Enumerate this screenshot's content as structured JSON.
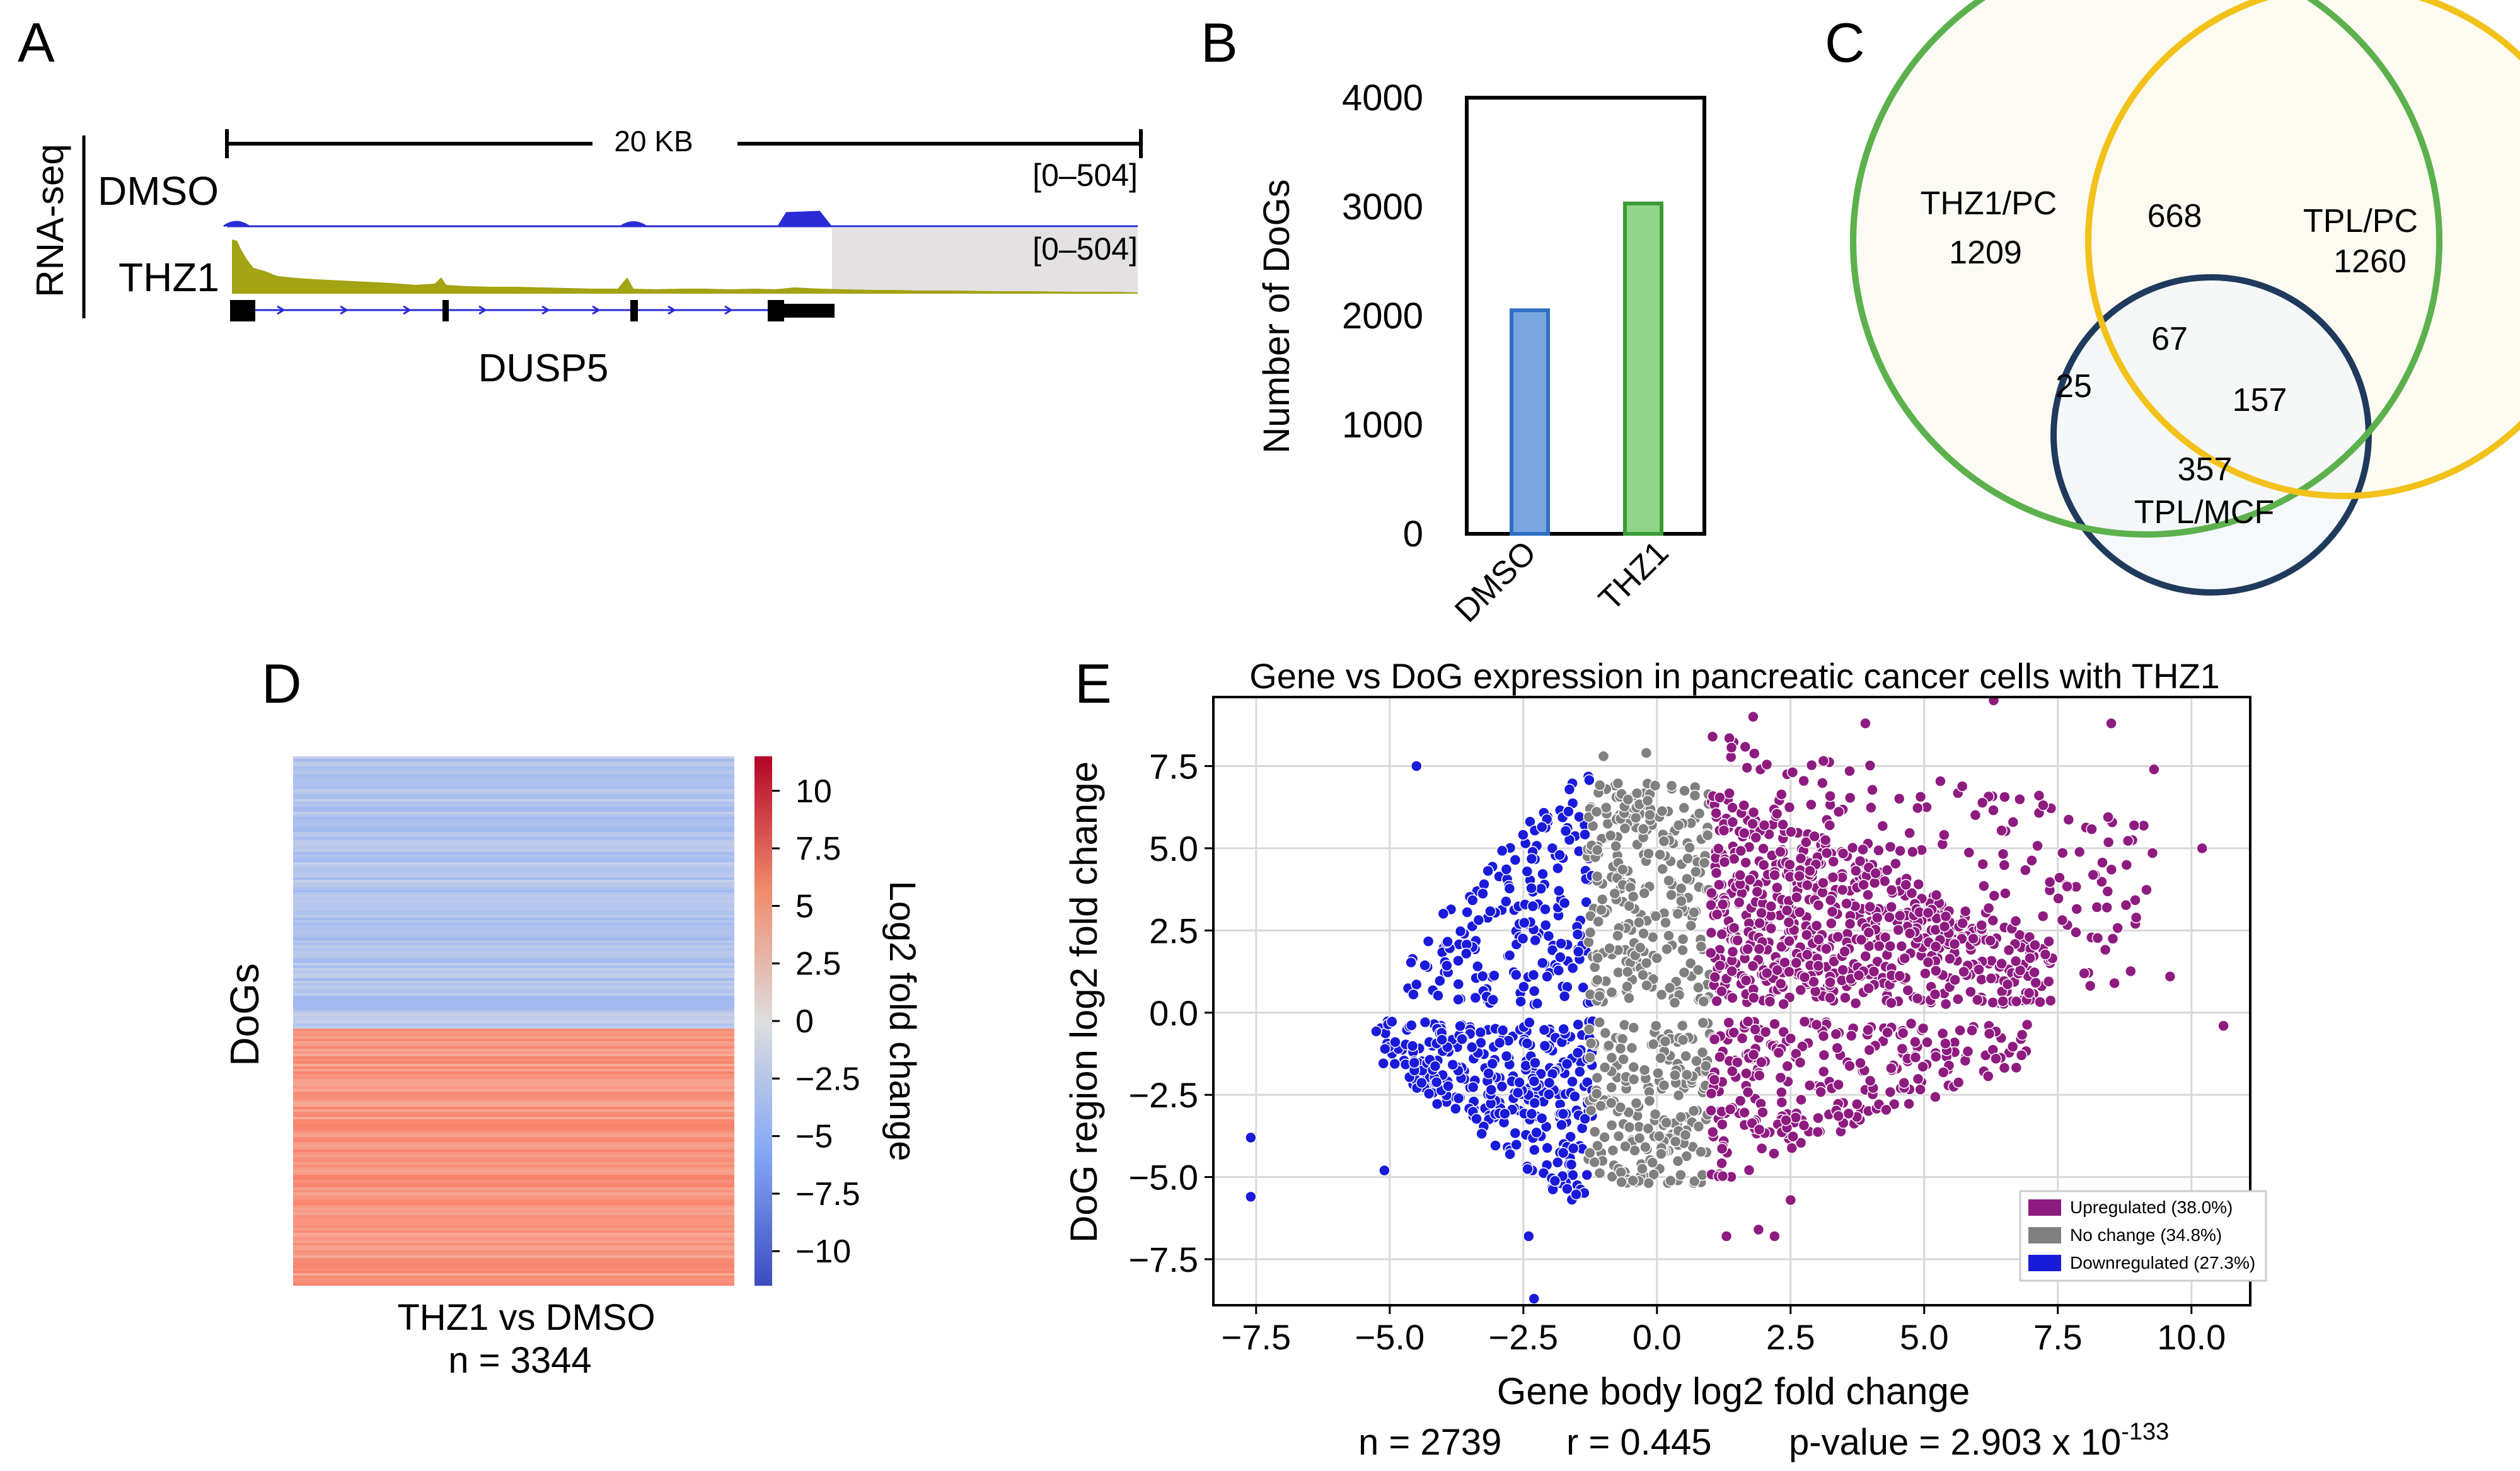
{
  "panel_letters": {
    "a": "A",
    "b": "B",
    "c": "C",
    "d": "D",
    "e": "E"
  },
  "colors": {
    "dmso_track": "#2b2bd6",
    "thz1_track": "#a3a313",
    "shade": "#e3e1e1",
    "bar_dmso": "#7aa6e0",
    "bar_dmso_edge": "#2e6fc2",
    "bar_thz1": "#8fd68a",
    "bar_thz1_edge": "#3a9c36",
    "venn_green": "#5cb14d",
    "venn_yellow": "#f2c21b",
    "venn_navy": "#1f3a5c",
    "up": "#8e1b80",
    "nc": "#808080",
    "down": "#1a1adb"
  },
  "panel_a": {
    "side_label": "RNA-seq",
    "scale_label": "20 KB",
    "tracks": [
      {
        "name": "DMSO",
        "range": "[0–504]"
      },
      {
        "name": "THZ1",
        "range": "[0–504]"
      }
    ],
    "gene": "DUSP5"
  },
  "chart_data": [
    {
      "type": "bar",
      "panel": "B",
      "categories": [
        "DMSO",
        "THZ1"
      ],
      "values": [
        2050,
        3030
      ],
      "ylabel": "Number of DoGs",
      "ylim": [
        0,
        4000
      ],
      "yticks": [
        0,
        1000,
        2000,
        3000,
        4000
      ]
    },
    {
      "type": "venn",
      "panel": "C",
      "sets": [
        "THZ1/PC",
        "TPL/PC",
        "TPL/MCF"
      ],
      "regions": {
        "thz1_only": "1209",
        "tplpc_only": "1260",
        "tplmcf_only": "357",
        "thz1_tplpc": "668",
        "thz1_tplmcf": "25",
        "tplpc_tplmcf": "157",
        "all": "67"
      }
    },
    {
      "type": "heatmap",
      "panel": "D",
      "ylabel": "DoGs",
      "xlabel": "THZ1 vs DMSO",
      "n_label": "n = 3344",
      "colorbar_label": "Log2 fold change",
      "colorbar_range": [
        -11.5,
        11.5
      ],
      "colorbar_ticks": [
        "10",
        "7.5",
        "5",
        "2.5",
        "0",
        "−2.5",
        "−5",
        "−7.5",
        "−10"
      ],
      "colorbar_tick_values": [
        10,
        7.5,
        5,
        2.5,
        0,
        -2.5,
        -5,
        -7.5,
        -10
      ],
      "down_fraction": 0.51
    },
    {
      "type": "scatter",
      "panel": "E",
      "title": "Gene vs DoG expression in pancreatic cancer cells with THZ1",
      "xlabel": "Gene body log2 fold change",
      "ylabel": "DoG region log2 fold change",
      "xlim": [
        -8.3,
        11.1
      ],
      "ylim": [
        -8.9,
        9.6
      ],
      "xticks": [
        -7.5,
        -5.0,
        -2.5,
        0.0,
        2.5,
        5.0,
        7.5,
        10.0
      ],
      "xtick_labels": [
        "−7.5",
        "−5.0",
        "−2.5",
        "0.0",
        "2.5",
        "5.0",
        "7.5",
        "10.0"
      ],
      "yticks": [
        7.5,
        5.0,
        2.5,
        0.0,
        -2.5,
        -5.0,
        -7.5
      ],
      "ytick_labels": [
        "7.5",
        "5.0",
        "2.5",
        "0.0",
        "−2.5",
        "−5.0",
        "−7.5"
      ],
      "legend": [
        {
          "label": "Upregulated (38.0%)",
          "key": "up"
        },
        {
          "label": "No change (34.8%)",
          "key": "nc"
        },
        {
          "label": "Downregulated (27.3%)",
          "key": "down"
        }
      ],
      "stats": {
        "n": "n = 2739",
        "r": "r = 0.445",
        "p": "p-value = 2.903 x 10",
        "p_exp": "-133"
      },
      "outlier_points": [
        [
          -7.6,
          -3.8
        ],
        [
          -7.6,
          -5.6
        ],
        [
          -4.5,
          7.5
        ],
        [
          -2.3,
          -8.7
        ],
        [
          -2.4,
          -6.8
        ],
        [
          1.8,
          9.0
        ],
        [
          6.3,
          9.5
        ],
        [
          10.2,
          5.0
        ],
        [
          10.6,
          -0.4
        ],
        [
          9.3,
          7.4
        ],
        [
          1.3,
          -6.8
        ],
        [
          1.9,
          -6.6
        ],
        [
          2.2,
          -6.8
        ],
        [
          2.5,
          -5.7
        ],
        [
          -0.2,
          7.9
        ],
        [
          -1.0,
          7.8
        ],
        [
          3.9,
          8.8
        ],
        [
          8.5,
          8.8
        ],
        [
          9.6,
          1.1
        ],
        [
          -5.1,
          -4.8
        ]
      ],
      "clusters": [
        {
          "class": "down",
          "count": 330,
          "x": [
            -5.3,
            -1.2
          ],
          "y": [
            -5.7,
            -0.25
          ],
          "shape": "tri_left"
        },
        {
          "class": "down",
          "count": 190,
          "x": [
            -4.7,
            -1.2
          ],
          "y": [
            0.25,
            7.2
          ],
          "shape": "tri_left"
        },
        {
          "class": "nc",
          "count": 200,
          "x": [
            -1.3,
            1.0
          ],
          "y": [
            -5.2,
            -0.25
          ],
          "shape": "rect"
        },
        {
          "class": "nc",
          "count": 260,
          "x": [
            -1.3,
            1.0
          ],
          "y": [
            0.25,
            7.0
          ],
          "shape": "rect"
        },
        {
          "class": "up",
          "count": 560,
          "x": [
            1.0,
            7.4
          ],
          "y": [
            0.25,
            6.6
          ],
          "shape": "tri_right"
        },
        {
          "class": "up",
          "count": 230,
          "x": [
            1.0,
            9.3
          ],
          "y": [
            0.8,
            8.5
          ],
          "shape": "sparse"
        },
        {
          "class": "up",
          "count": 260,
          "x": [
            1.0,
            7.0
          ],
          "y": [
            -5.0,
            -0.25
          ],
          "shape": "tri_right"
        }
      ]
    }
  ]
}
